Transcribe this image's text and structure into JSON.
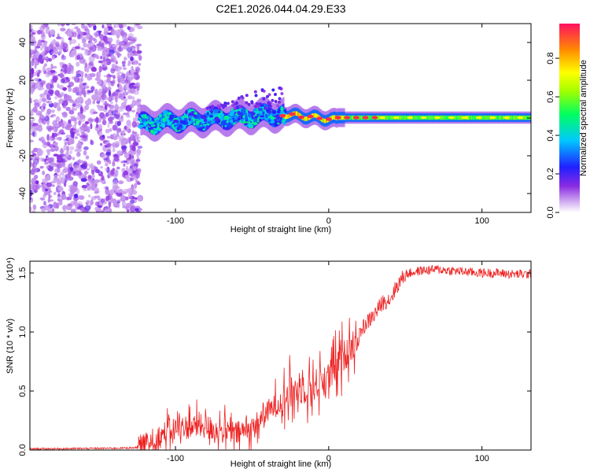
{
  "title": "C2E1.2026.044.04.29.E33",
  "chart_data": [
    {
      "type": "heatmap",
      "xlabel": "Height of straight line (km)",
      "ylabel": "Frequency (Hz)",
      "xlim": [
        -195,
        132
      ],
      "ylim": [
        -50,
        50
      ],
      "xticks": [
        -100,
        0,
        100
      ],
      "yticks": [
        -40,
        -20,
        0,
        20,
        40
      ],
      "colorbar": {
        "label": "Normalized spectral amplitude",
        "range": [
          0.0,
          0.98
        ],
        "ticks": [
          0.0,
          0.2,
          0.4,
          0.6,
          0.8
        ],
        "tick_labels": [
          "0.0",
          "0.2",
          "0.4",
          "0.6",
          "0.8"
        ]
      },
      "regions": [
        {
          "name": "noise-region",
          "x_range": [
            -195,
            -123
          ],
          "freq_range": [
            -50,
            50
          ],
          "amplitude": "low (~0.05-0.2)"
        },
        {
          "name": "signal-band-broad",
          "x_range": [
            -123,
            -30
          ],
          "freq_center_range": [
            -5,
            3
          ],
          "amplitude": "0.2-0.5"
        },
        {
          "name": "signal-band-narrow",
          "x_range": [
            -30,
            132
          ],
          "freq_center": 0,
          "amplitude": "0.6-0.98"
        }
      ]
    },
    {
      "type": "line",
      "xlabel": "Height of straight line (km)",
      "ylabel": "SNR (10 * v/v)",
      "multiplier": "(x10⁴)",
      "xlim": [
        -195,
        132
      ],
      "ylim": [
        0,
        1.6
      ],
      "xticks": [
        -100,
        0,
        100
      ],
      "yticks": [
        0.0,
        0.5,
        1.0,
        1.5
      ],
      "ytick_labels": [
        "0.0",
        "0.5",
        "1.0",
        "1.5"
      ],
      "series": [
        {
          "name": "SNR",
          "color": "#ee2222",
          "x": [
            -195,
            -170,
            -140,
            -125,
            -118,
            -112,
            -105,
            -100,
            -90,
            -80,
            -70,
            -60,
            -50,
            -45,
            -40,
            -35,
            -30,
            -25,
            -20,
            -15,
            -10,
            -5,
            0,
            5,
            10,
            15,
            20,
            25,
            30,
            35,
            40,
            45,
            50,
            60,
            70,
            80,
            90,
            100,
            110,
            120,
            132
          ],
          "y": [
            0.01,
            0.012,
            0.015,
            0.02,
            0.05,
            0.1,
            0.16,
            0.18,
            0.2,
            0.2,
            0.16,
            0.14,
            0.18,
            0.25,
            0.32,
            0.38,
            0.42,
            0.48,
            0.52,
            0.52,
            0.55,
            0.57,
            0.62,
            0.7,
            0.8,
            0.88,
            1.0,
            1.08,
            1.15,
            1.25,
            1.28,
            1.4,
            1.49,
            1.52,
            1.53,
            1.52,
            1.51,
            1.5,
            1.5,
            1.49,
            1.49
          ]
        }
      ]
    }
  ]
}
